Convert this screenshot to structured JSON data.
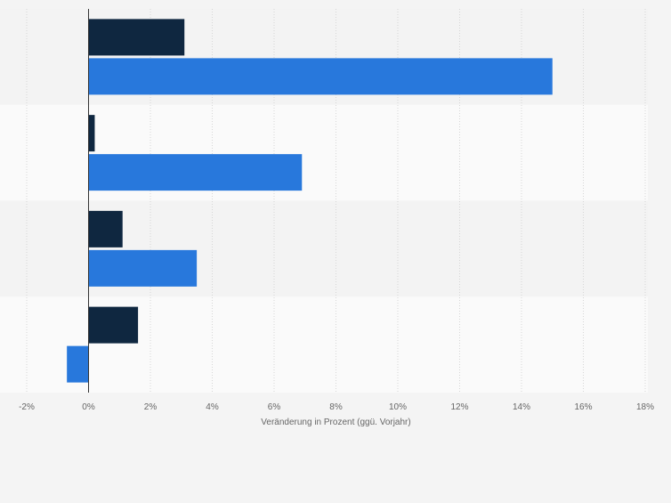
{
  "chart_data": {
    "type": "bar",
    "orientation": "horizontal",
    "categories": [
      "",
      "",
      "",
      ""
    ],
    "series": [
      {
        "values": [
          3.1,
          0.2,
          1.1,
          1.6
        ]
      },
      {
        "values": [
          15.0,
          6.9,
          3.5,
          -0.7
        ]
      }
    ],
    "xlabel": "Veränderung in Prozent (ggü. Vorjahr)",
    "xlim": [
      -2,
      18
    ],
    "xticks": [
      -2,
      0,
      2,
      4,
      6,
      8,
      10,
      12,
      14,
      16,
      18
    ],
    "xtick_labels": [
      "-2%",
      "0%",
      "2%",
      "4%",
      "6%",
      "8%",
      "10%",
      "12%",
      "14%",
      "16%",
      "18%"
    ],
    "grid": true,
    "colors": {
      "series": [
        "#0f2740",
        "#2878dc"
      ],
      "band_dark": "#f3f3f3",
      "band_light": "#fafafa",
      "grid": "#d6d6d6",
      "zero_line": "#333333",
      "text": "#666666"
    }
  }
}
